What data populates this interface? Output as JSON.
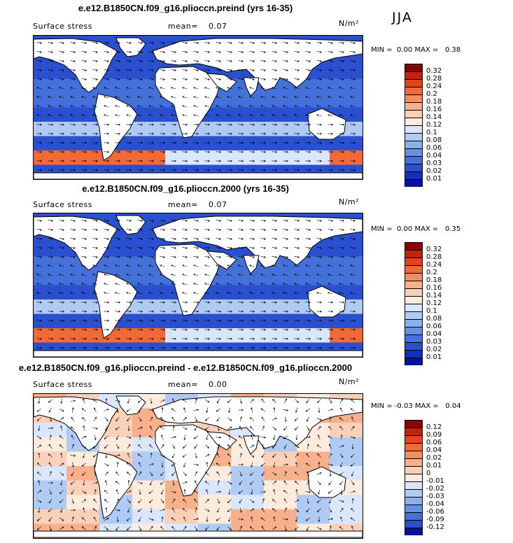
{
  "season": "JJA",
  "panels": [
    {
      "title": "e.e12.B1850CN.f09_g16.plioccn.preind (yrs 16-35)",
      "subtitle": "Surface stress",
      "mean_label": "mean=",
      "mean_value": "0.07",
      "units": "N/m²",
      "min_label": "MIN =",
      "min_value": "0.00",
      "max_label": "MAX =",
      "max_value": "0.38",
      "colorbar_labels": [
        "0.32",
        "0.28",
        "0.24",
        "0.2",
        "0.18",
        "0.16",
        "0.14",
        "0.12",
        "0.1",
        "0.08",
        "0.06",
        "0.04",
        "0.03",
        "0.02",
        "0.01"
      ],
      "colorbar_colors": [
        "#8b0000",
        "#c1230b",
        "#e1451a",
        "#f06a38",
        "#f38e62",
        "#f7b08c",
        "#fad0b8",
        "#fdebdd",
        "#d9e6fb",
        "#b0cbf3",
        "#8cb0ec",
        "#6591e3",
        "#4470da",
        "#2a4fcf",
        "#1430b8",
        "#06129a"
      ]
    },
    {
      "title": "e.e12.B1850CN.f09_g16.plioccn.2000 (yrs 16-35)",
      "subtitle": "Surface stress",
      "mean_label": "mean=",
      "mean_value": "0.07",
      "units": "N/m²",
      "min_label": "MIN =",
      "min_value": "0.00",
      "max_label": "MAX =",
      "max_value": "0.35",
      "colorbar_labels": [
        "0.32",
        "0.28",
        "0.24",
        "0.2",
        "0.18",
        "0.16",
        "0.14",
        "0.12",
        "0.1",
        "0.08",
        "0.06",
        "0.04",
        "0.03",
        "0.02",
        "0.01"
      ],
      "colorbar_colors": [
        "#8b0000",
        "#c1230b",
        "#e1451a",
        "#f06a38",
        "#f38e62",
        "#f7b08c",
        "#fad0b8",
        "#fdebdd",
        "#d9e6fb",
        "#b0cbf3",
        "#8cb0ec",
        "#6591e3",
        "#4470da",
        "#2a4fcf",
        "#1430b8",
        "#06129a"
      ]
    },
    {
      "title": "e.e12.B1850CN.f09_g16.plioccn.preind - e.e12.B1850CN.f09_g16.plioccn.2000",
      "subtitle": "Surface stress",
      "mean_label": "mean=",
      "mean_value": "0.00",
      "units": "N/m²",
      "min_label": "MIN =",
      "min_value": "-0.03",
      "max_label": "MAX =",
      "max_value": "0.04",
      "colorbar_labels": [
        "0.12",
        "0.09",
        "0.06",
        "0.04",
        "0.02",
        "0.01",
        "0",
        "-0.01",
        "-0.02",
        "-0.03",
        "-0.04",
        "-0.06",
        "-0.09",
        "-0.12"
      ],
      "colorbar_colors": [
        "#8b0000",
        "#c1230b",
        "#e1451a",
        "#f06a38",
        "#f38e62",
        "#f7b08c",
        "#fad0b8",
        "#fdebdd",
        "#d9e6fb",
        "#b0cbf3",
        "#8cb0ec",
        "#6591e3",
        "#4470da",
        "#2a4fcf",
        "#06129a"
      ]
    }
  ],
  "chart_data": {
    "type": "heatmap",
    "variable": "Surface stress",
    "units": "N/m²",
    "season": "JJA",
    "maps": [
      {
        "title": "e.e12.B1850CN.f09_g16.plioccn.preind (yrs 16-35)",
        "mean": 0.07,
        "min": 0.0,
        "max": 0.38
      },
      {
        "title": "e.e12.B1850CN.f09_g16.plioccn.2000 (yrs 16-35)",
        "mean": 0.07,
        "min": 0.0,
        "max": 0.35
      },
      {
        "title": "e.e12.B1850CN.f09_g16.plioccn.preind - e.e12.B1850CN.f09_g16.plioccn.2000",
        "mean": 0.0,
        "min": -0.03,
        "max": 0.04
      }
    ],
    "abs_levels": [
      0.01,
      0.02,
      0.03,
      0.04,
      0.06,
      0.08,
      0.1,
      0.12,
      0.14,
      0.16,
      0.18,
      0.2,
      0.24,
      0.28,
      0.32
    ],
    "diff_levels": [
      -0.12,
      -0.09,
      -0.06,
      -0.04,
      -0.03,
      -0.02,
      -0.01,
      0,
      0.01,
      0.02,
      0.04,
      0.06,
      0.09,
      0.12
    ]
  }
}
